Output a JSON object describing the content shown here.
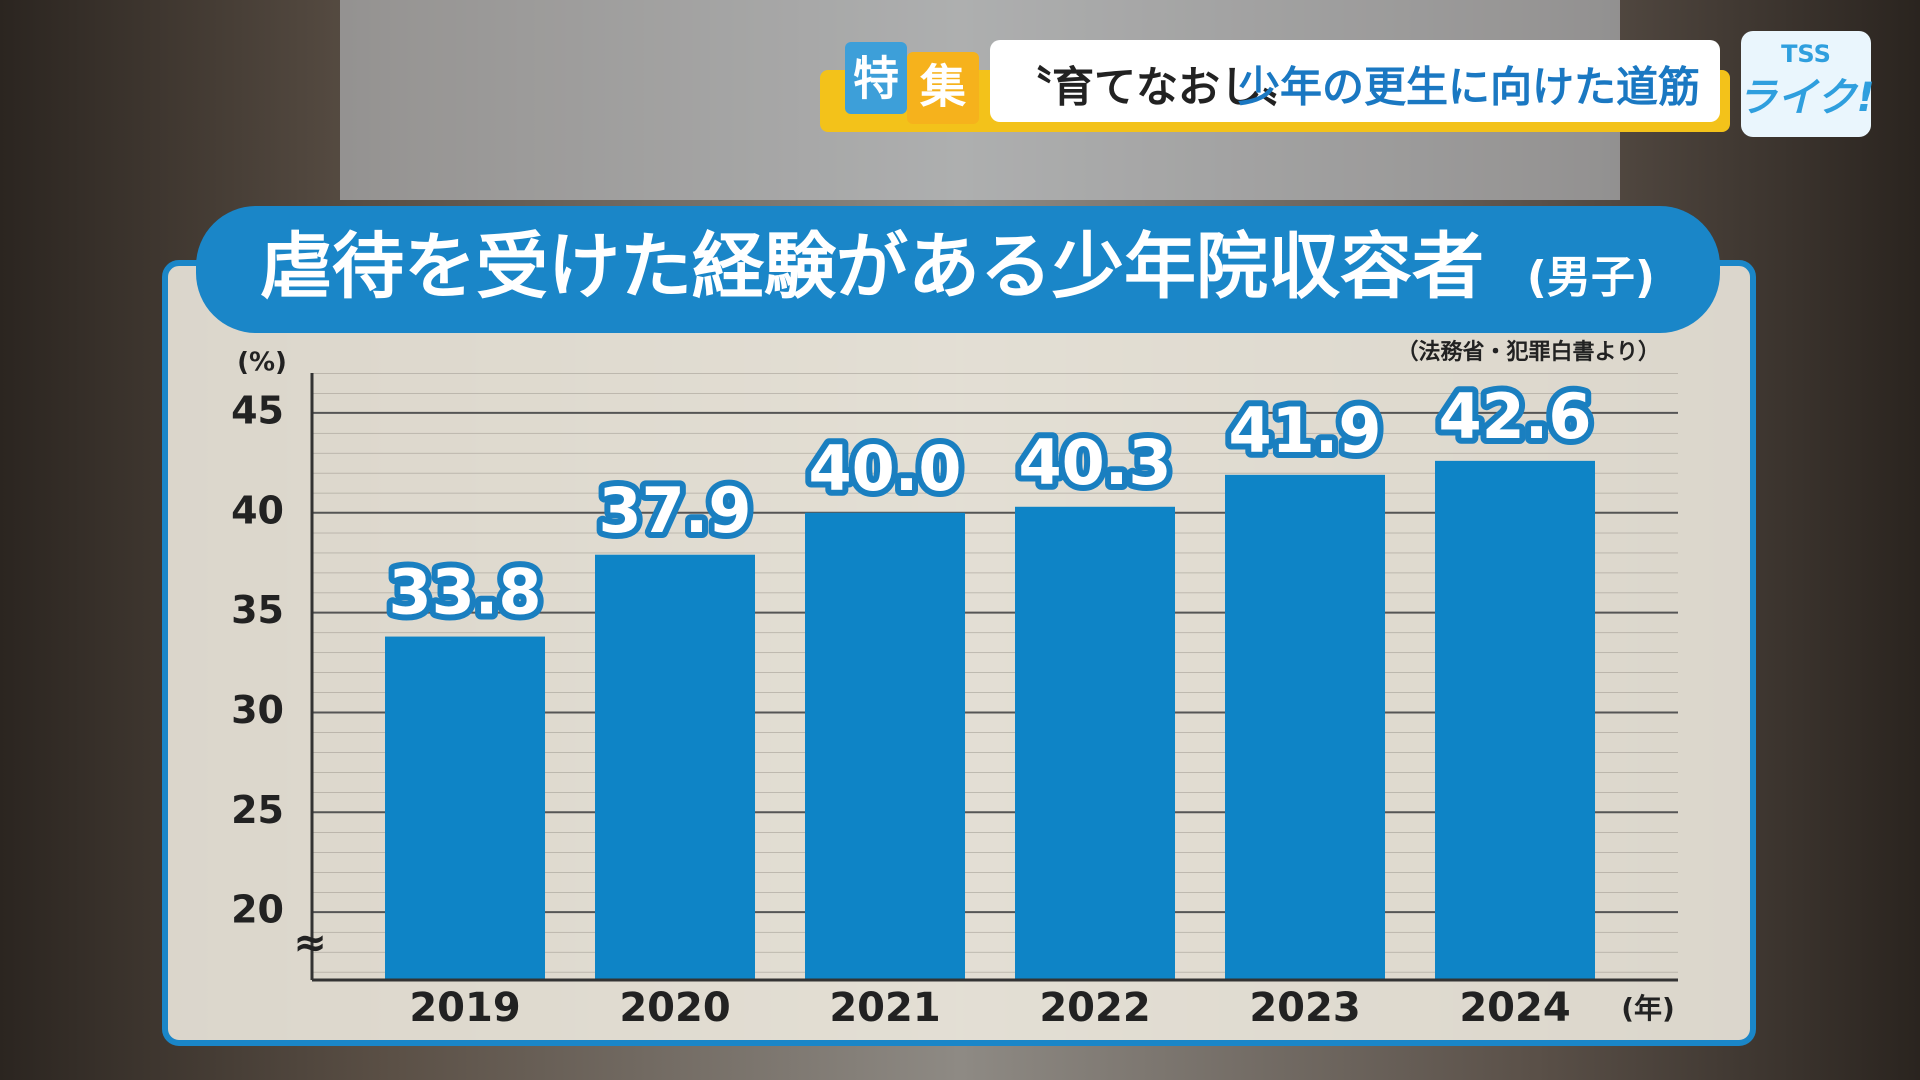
{
  "banner": {
    "tag1": "特",
    "tag2": "集",
    "headline_quote": "〝育てなおし〟",
    "headline": "少年の更生に向けた道筋"
  },
  "logo": {
    "top": "TSS",
    "bottom": "ライク!"
  },
  "chart_data": {
    "type": "bar",
    "title": "虐待を受けた経験がある少年院収容者",
    "title_suffix": "(男子)",
    "source": "（法務省・犯罪白書より）",
    "y_unit": "(%)",
    "x_unit": "(年)",
    "categories": [
      "2019",
      "2020",
      "2021",
      "2022",
      "2023",
      "2024"
    ],
    "values": [
      33.8,
      37.9,
      40.0,
      40.3,
      41.9,
      42.6
    ],
    "value_labels": [
      "33.8",
      "37.9",
      "40.0",
      "40.3",
      "41.9",
      "42.6"
    ],
    "color": "#0e84c6",
    "ylim": [
      16.6,
      47
    ],
    "yticks": [
      20,
      25,
      30,
      35,
      40,
      45
    ],
    "grid": true
  }
}
